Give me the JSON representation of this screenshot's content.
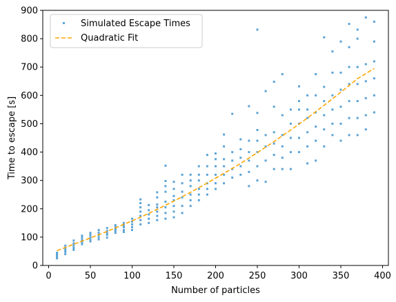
{
  "chart_data": {
    "type": "scatter",
    "xlabel": "Number of particles",
    "ylabel": "Time to escape [s]",
    "xlim": [
      -7,
      407
    ],
    "ylim": [
      0,
      900
    ],
    "xticks": [
      0,
      50,
      100,
      150,
      200,
      250,
      300,
      350,
      400
    ],
    "yticks": [
      0,
      100,
      200,
      300,
      400,
      500,
      600,
      700,
      800,
      900
    ],
    "grid": false,
    "legend_position": "top-left",
    "series": [
      {
        "name": "Simulated Escape Times",
        "kind": "points",
        "color": "#5ba3d6",
        "points": [
          [
            10,
            25
          ],
          [
            10,
            30
          ],
          [
            10,
            35
          ],
          [
            10,
            40
          ],
          [
            10,
            45
          ],
          [
            20,
            40
          ],
          [
            20,
            48
          ],
          [
            20,
            55
          ],
          [
            20,
            62
          ],
          [
            20,
            70
          ],
          [
            30,
            55
          ],
          [
            30,
            62
          ],
          [
            30,
            70
          ],
          [
            30,
            78
          ],
          [
            30,
            88
          ],
          [
            40,
            75
          ],
          [
            40,
            82
          ],
          [
            40,
            90
          ],
          [
            40,
            98
          ],
          [
            40,
            105
          ],
          [
            50,
            85
          ],
          [
            50,
            92
          ],
          [
            50,
            100
          ],
          [
            50,
            108
          ],
          [
            50,
            115
          ],
          [
            60,
            92
          ],
          [
            60,
            100
          ],
          [
            60,
            108
          ],
          [
            60,
            116
          ],
          [
            60,
            125
          ],
          [
            70,
            98
          ],
          [
            70,
            108
          ],
          [
            70,
            115
          ],
          [
            70,
            122
          ],
          [
            70,
            132
          ],
          [
            80,
            115
          ],
          [
            80,
            122
          ],
          [
            80,
            128
          ],
          [
            80,
            135
          ],
          [
            80,
            142
          ],
          [
            90,
            118
          ],
          [
            90,
            125
          ],
          [
            90,
            135
          ],
          [
            90,
            142
          ],
          [
            90,
            150
          ],
          [
            100,
            125
          ],
          [
            100,
            135
          ],
          [
            100,
            145
          ],
          [
            100,
            155
          ],
          [
            100,
            165
          ],
          [
            110,
            145
          ],
          [
            110,
            160
          ],
          [
            110,
            175
          ],
          [
            110,
            190
          ],
          [
            110,
            205
          ],
          [
            110,
            220
          ],
          [
            110,
            233
          ],
          [
            120,
            150
          ],
          [
            120,
            165
          ],
          [
            120,
            180
          ],
          [
            120,
            195
          ],
          [
            120,
            213
          ],
          [
            130,
            160
          ],
          [
            130,
            175
          ],
          [
            130,
            190
          ],
          [
            130,
            205
          ],
          [
            130,
            215
          ],
          [
            130,
            240
          ],
          [
            130,
            258
          ],
          [
            140,
            165
          ],
          [
            140,
            185
          ],
          [
            140,
            205
          ],
          [
            140,
            225
          ],
          [
            140,
            260
          ],
          [
            140,
            280
          ],
          [
            140,
            298
          ],
          [
            140,
            352
          ],
          [
            150,
            170
          ],
          [
            150,
            190
          ],
          [
            150,
            210
          ],
          [
            150,
            230
          ],
          [
            150,
            245
          ],
          [
            150,
            270
          ],
          [
            150,
            295
          ],
          [
            160,
            185
          ],
          [
            160,
            210
          ],
          [
            160,
            240
          ],
          [
            160,
            260
          ],
          [
            160,
            290
          ],
          [
            160,
            320
          ],
          [
            170,
            210
          ],
          [
            170,
            230
          ],
          [
            170,
            250
          ],
          [
            170,
            280
          ],
          [
            170,
            300
          ],
          [
            170,
            320
          ],
          [
            180,
            230
          ],
          [
            180,
            250
          ],
          [
            180,
            270
          ],
          [
            180,
            300
          ],
          [
            180,
            320
          ],
          [
            180,
            350
          ],
          [
            190,
            250
          ],
          [
            190,
            270
          ],
          [
            190,
            290
          ],
          [
            190,
            320
          ],
          [
            190,
            350
          ],
          [
            190,
            390
          ],
          [
            200,
            270
          ],
          [
            200,
            290
          ],
          [
            200,
            320
          ],
          [
            200,
            350
          ],
          [
            200,
            375
          ],
          [
            200,
            395
          ],
          [
            210,
            290
          ],
          [
            210,
            320
          ],
          [
            210,
            350
          ],
          [
            210,
            375
          ],
          [
            210,
            420
          ],
          [
            210,
            462
          ],
          [
            220,
            310
          ],
          [
            220,
            340
          ],
          [
            220,
            370
          ],
          [
            220,
            400
          ],
          [
            220,
            535
          ],
          [
            230,
            320
          ],
          [
            230,
            350
          ],
          [
            230,
            380
          ],
          [
            230,
            410
          ],
          [
            230,
            445
          ],
          [
            240,
            280
          ],
          [
            240,
            330
          ],
          [
            240,
            370
          ],
          [
            240,
            400
          ],
          [
            240,
            440
          ],
          [
            240,
            562
          ],
          [
            250,
            300
          ],
          [
            250,
            350
          ],
          [
            250,
            400
          ],
          [
            250,
            440
          ],
          [
            250,
            478
          ],
          [
            250,
            538
          ],
          [
            250,
            832
          ],
          [
            260,
            295
          ],
          [
            260,
            370
          ],
          [
            260,
            420
          ],
          [
            260,
            460
          ],
          [
            260,
            615
          ],
          [
            270,
            340
          ],
          [
            270,
            390
          ],
          [
            270,
            430
          ],
          [
            270,
            470
          ],
          [
            270,
            560
          ],
          [
            270,
            648
          ],
          [
            280,
            340
          ],
          [
            280,
            380
          ],
          [
            280,
            420
          ],
          [
            280,
            460
          ],
          [
            280,
            530
          ],
          [
            280,
            675
          ],
          [
            290,
            340
          ],
          [
            290,
            400
          ],
          [
            290,
            450
          ],
          [
            290,
            500
          ],
          [
            290,
            550
          ],
          [
            300,
            400
          ],
          [
            300,
            450
          ],
          [
            300,
            500
          ],
          [
            300,
            550
          ],
          [
            300,
            580
          ],
          [
            300,
            632
          ],
          [
            310,
            360
          ],
          [
            310,
            420
          ],
          [
            310,
            470
          ],
          [
            310,
            520
          ],
          [
            310,
            550
          ],
          [
            310,
            600
          ],
          [
            320,
            370
          ],
          [
            320,
            440
          ],
          [
            320,
            490
          ],
          [
            320,
            540
          ],
          [
            320,
            600
          ],
          [
            320,
            675
          ],
          [
            330,
            420
          ],
          [
            330,
            480
          ],
          [
            330,
            530
          ],
          [
            330,
            580
          ],
          [
            330,
            630
          ],
          [
            330,
            805
          ],
          [
            340,
            460
          ],
          [
            340,
            500
          ],
          [
            340,
            550
          ],
          [
            340,
            600
          ],
          [
            340,
            680
          ],
          [
            340,
            755
          ],
          [
            350,
            440
          ],
          [
            350,
            500
          ],
          [
            350,
            560
          ],
          [
            350,
            620
          ],
          [
            350,
            680
          ],
          [
            350,
            790
          ],
          [
            360,
            460
          ],
          [
            360,
            520
          ],
          [
            360,
            580
          ],
          [
            360,
            640
          ],
          [
            360,
            700
          ],
          [
            360,
            770
          ],
          [
            360,
            852
          ],
          [
            370,
            460
          ],
          [
            370,
            520
          ],
          [
            370,
            580
          ],
          [
            370,
            640
          ],
          [
            370,
            700
          ],
          [
            370,
            800
          ],
          [
            370,
            832
          ],
          [
            380,
            480
          ],
          [
            380,
            530
          ],
          [
            380,
            590
          ],
          [
            380,
            650
          ],
          [
            380,
            710
          ],
          [
            380,
            875
          ],
          [
            390,
            540
          ],
          [
            390,
            600
          ],
          [
            390,
            660
          ],
          [
            390,
            720
          ],
          [
            390,
            790
          ],
          [
            390,
            860
          ]
        ]
      },
      {
        "name": "Quadratic Fit",
        "kind": "dashed-line",
        "color": "#ffa500",
        "x": [
          10,
          30,
          50,
          70,
          90,
          110,
          130,
          150,
          170,
          190,
          210,
          230,
          250,
          270,
          290,
          310,
          330,
          350,
          370,
          390
        ],
        "y": [
          52,
          75,
          97,
          120,
          145,
          170,
          198,
          227,
          258,
          291,
          325,
          360,
          398,
          437,
          478,
          520,
          565,
          611,
          659,
          695
        ]
      }
    ]
  }
}
